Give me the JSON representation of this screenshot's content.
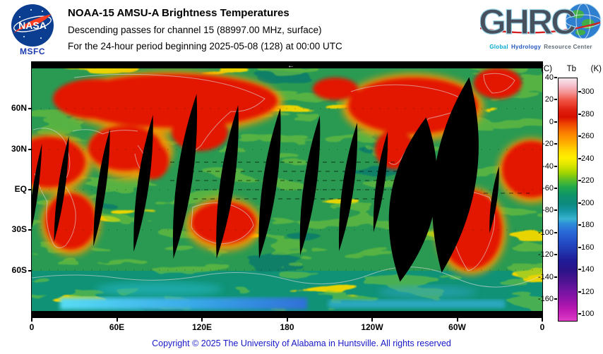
{
  "header": {
    "nasa_wordmark": "NASA",
    "msfc_label": "MSFC",
    "title": "NOAA-15 AMSU-A Brightness Temperatures",
    "subtitle": "Descending passes for channel 15 (88997.00 MHz, surface)",
    "period_line": "For the 24-hour period beginning 2025-05-08 (128) at 00:00 UTC",
    "ghrc": {
      "acronym": "GHRC",
      "tagline_words": [
        {
          "text": "Global",
          "color": "#00a9cf"
        },
        {
          "text": "Hydrology",
          "color": "#2356c0"
        },
        {
          "text": "Resource Center",
          "color": "#5d6a75"
        }
      ]
    }
  },
  "map": {
    "arrow": "←",
    "lat_ticks": [
      {
        "label": "60N",
        "lat": 60
      },
      {
        "label": "30N",
        "lat": 30
      },
      {
        "label": "EQ",
        "lat": 0
      },
      {
        "label": "30S",
        "lat": -30
      },
      {
        "label": "60S",
        "lat": -60
      }
    ],
    "lon_ticks": [
      {
        "label": "0",
        "deg": 0
      },
      {
        "label": "60E",
        "deg": 60
      },
      {
        "label": "120E",
        "deg": 120
      },
      {
        "label": "180",
        "deg": 180
      },
      {
        "label": "120W",
        "deg": 240
      },
      {
        "label": "60W",
        "deg": 300
      },
      {
        "label": "0",
        "deg": 360
      }
    ],
    "swaths": [
      [
        42,
        180,
        76,
        5,
        8
      ],
      [
        99,
        178,
        84,
        6,
        8
      ],
      [
        158,
        172,
        98,
        8,
        8
      ],
      [
        217,
        162,
        118,
        11,
        8
      ],
      [
        277,
        170,
        110,
        10,
        8
      ],
      [
        337,
        172,
        108,
        10,
        8
      ],
      [
        394,
        175,
        100,
        9,
        8
      ],
      [
        448,
        177,
        92,
        8,
        8
      ],
      [
        494,
        170,
        72,
        6,
        8
      ],
      [
        600,
        160,
        140,
        30,
        8
      ],
      [
        540,
        195,
        118,
        32,
        9
      ],
      [
        655,
        195,
        48,
        4,
        8
      ],
      [
        4,
        190,
        75,
        4,
        8
      ]
    ]
  },
  "colorbar": {
    "header_c": "(C)",
    "header_tb": "Tb",
    "header_k": "(K)",
    "scale_top_k": 313,
    "scale_bottom_k": 93,
    "celsius_ticks": [
      40,
      20,
      0,
      -20,
      -40,
      -60,
      -80,
      -100,
      -120,
      -140,
      -160
    ],
    "kelvin_ticks": [
      300,
      280,
      260,
      240,
      220,
      200,
      180,
      160,
      140,
      120,
      100
    ],
    "gradient": [
      [
        0,
        "#f6e6ee"
      ],
      [
        3,
        "#f5c0cc"
      ],
      [
        6,
        "#f49090"
      ],
      [
        9,
        "#ef5545"
      ],
      [
        13,
        "#e02010"
      ],
      [
        16,
        "#d81000"
      ],
      [
        19,
        "#f04800"
      ],
      [
        23,
        "#fb8500"
      ],
      [
        27,
        "#ffb300"
      ],
      [
        30,
        "#ffd900"
      ],
      [
        33,
        "#fdf000"
      ],
      [
        36,
        "#d8e400"
      ],
      [
        39,
        "#a0d400"
      ],
      [
        42,
        "#58bc28"
      ],
      [
        45,
        "#20a84c"
      ],
      [
        48,
        "#0f9468"
      ],
      [
        52,
        "#0d8a80"
      ],
      [
        55,
        "#1898a8"
      ],
      [
        58,
        "#38b4d0"
      ],
      [
        60,
        "#2c8cd8"
      ],
      [
        63,
        "#2a6cd8"
      ],
      [
        67,
        "#2450c8"
      ],
      [
        71,
        "#2038b0"
      ],
      [
        75,
        "#201c98"
      ],
      [
        79,
        "#2a1488"
      ],
      [
        83,
        "#481490"
      ],
      [
        87,
        "#6c14a0"
      ],
      [
        91,
        "#9014a8"
      ],
      [
        95,
        "#b818b0"
      ],
      [
        100,
        "#e03cc8"
      ]
    ]
  },
  "footer": {
    "copyright": "Copyright © 2025 The University of Alabama in Huntsville. All rights reserved"
  }
}
